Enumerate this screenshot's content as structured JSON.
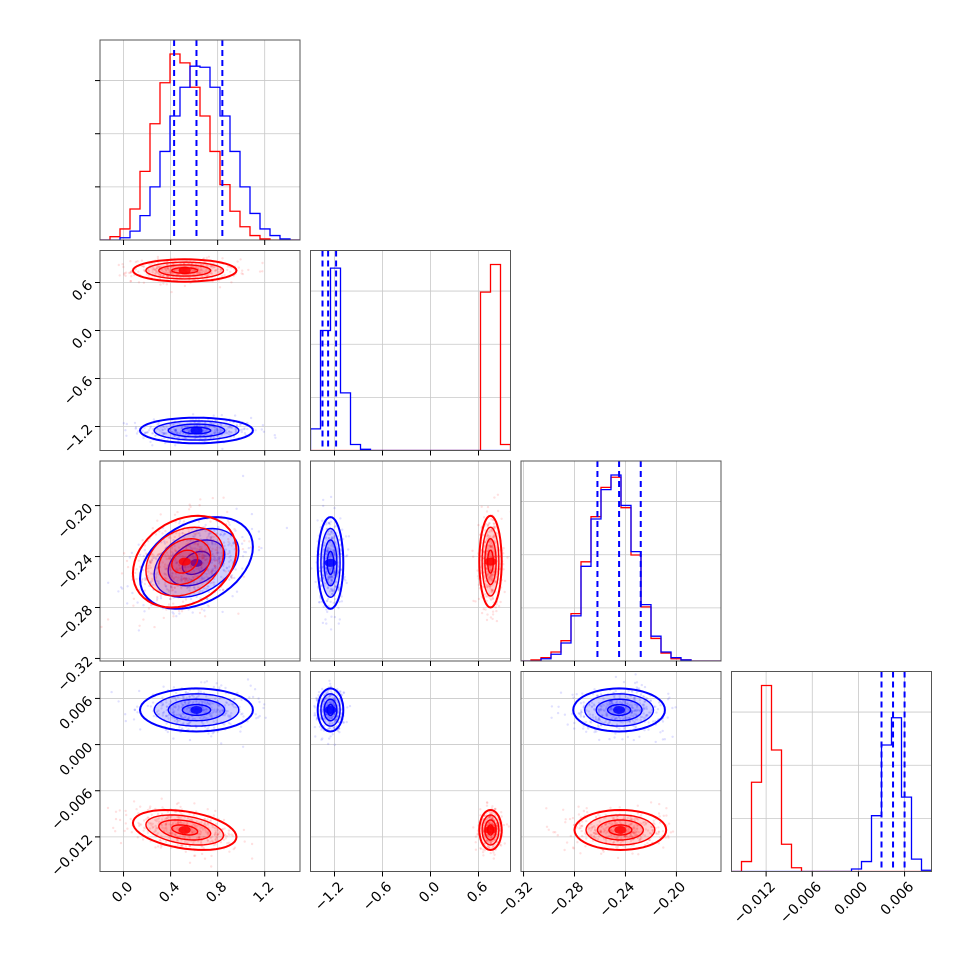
{
  "chart_data": {
    "type": "corner",
    "grid": true,
    "colors": {
      "series_a": "#0000ff",
      "series_b": "#ff0000"
    },
    "parameters": [
      {
        "range": [
          -0.2,
          1.5
        ],
        "ticks": [
          0.0,
          0.4,
          0.8,
          1.2
        ],
        "tick_labels": [
          "0.0",
          "0.4",
          "0.8",
          "1.2"
        ]
      },
      {
        "range": [
          -1.5,
          1.0
        ],
        "ticks": [
          -1.2,
          -0.6,
          0.0,
          0.6
        ],
        "tick_labels": [
          "−1.2",
          "−0.6",
          "0.0",
          "0.6"
        ]
      },
      {
        "range": [
          -0.322,
          -0.165
        ],
        "ticks": [
          -0.32,
          -0.28,
          -0.24,
          -0.2
        ],
        "tick_labels": [
          "−0.32",
          "−0.28",
          "−0.24",
          "−0.20"
        ]
      },
      {
        "range": [
          -0.0165,
          0.0095
        ],
        "ticks": [
          -0.012,
          -0.006,
          0.0,
          0.006
        ],
        "tick_labels": [
          "−0.012",
          "−0.006",
          "0.000",
          "0.006"
        ]
      }
    ],
    "series": [
      {
        "color": "#0000ff",
        "mean": [
          0.62,
          -1.25,
          -0.245,
          0.0045
        ],
        "sd": [
          0.24,
          0.08,
          0.018,
          0.0014
        ],
        "quantiles": [
          [
            0.43,
            0.62,
            0.84
          ],
          [
            -1.35,
            -1.28,
            -1.18
          ],
          [
            -0.262,
            -0.245,
            -0.228
          ],
          [
            0.003,
            0.0045,
            0.006
          ]
        ],
        "corr": {
          "0-2": 0.35,
          "1-2": 0.0,
          "0-3": 0.0,
          "1-3": 0.0,
          "2-3": 0.0
        }
      },
      {
        "color": "#ff0000",
        "mean": [
          0.52,
          0.75,
          -0.244,
          -0.0111
        ],
        "sd": [
          0.22,
          0.07,
          0.018,
          0.0013
        ],
        "corr": {
          "0-2": 0.25,
          "0-3": -0.35,
          "1-2": 0.0,
          "1-3": 0.0,
          "2-3": 0.0
        }
      }
    ],
    "histograms": {
      "0": {
        "edges": [
          -0.2,
          -0.115,
          -0.03,
          0.055,
          0.14,
          0.225,
          0.31,
          0.395,
          0.48,
          0.565,
          0.65,
          0.735,
          0.82,
          0.905,
          0.99,
          1.075,
          1.16,
          1.245,
          1.33,
          1.415,
          1.5
        ],
        "blue": [
          0,
          0,
          2,
          8,
          22,
          48,
          80,
          112,
          138,
          157,
          156,
          138,
          112,
          80,
          48,
          24,
          10,
          4,
          1,
          0
        ],
        "red": [
          0,
          3,
          10,
          28,
          62,
          105,
          142,
          168,
          160,
          138,
          112,
          80,
          50,
          26,
          12,
          4,
          1,
          0,
          0,
          0
        ]
      },
      "1": {
        "edges": [
          -1.5,
          -1.375,
          -1.25,
          -1.125,
          -1.0,
          -0.875,
          -0.75,
          -0.625,
          -0.5,
          -0.375,
          -0.25,
          -0.125,
          0.0,
          0.125,
          0.25,
          0.375,
          0.5,
          0.625,
          0.75,
          0.875,
          1.0
        ],
        "blue": [
          18,
          100,
          152,
          48,
          5,
          1,
          0,
          0,
          0,
          0,
          0,
          0,
          0,
          0,
          0,
          0,
          0,
          0,
          0,
          0
        ],
        "red": [
          0,
          0,
          0,
          0,
          0,
          0,
          0,
          0,
          0,
          0,
          0,
          0,
          0,
          0,
          0,
          0,
          0,
          132,
          155,
          5
        ]
      },
      "2": {
        "edges": [
          -0.322,
          -0.31415,
          -0.3063,
          -0.29845,
          -0.2906,
          -0.28275,
          -0.2749,
          -0.26705,
          -0.2592,
          -0.25135,
          -0.2435,
          -0.23565,
          -0.2278,
          -0.21995,
          -0.2121,
          -0.20425,
          -0.1964,
          -0.18855,
          -0.1807,
          -0.17285,
          -0.165
        ],
        "blue": [
          0,
          0,
          2,
          6,
          16,
          40,
          84,
          126,
          152,
          165,
          138,
          97,
          50,
          22,
          8,
          3,
          1,
          0,
          0,
          0
        ],
        "red": [
          0,
          1,
          3,
          8,
          18,
          42,
          88,
          128,
          154,
          163,
          136,
          94,
          48,
          20,
          7,
          2,
          1,
          0,
          0,
          0
        ]
      },
      "3": {
        "edges": [
          -0.0165,
          -0.0152,
          -0.0139,
          -0.0126,
          -0.0113,
          -0.01,
          -0.0087,
          -0.0074,
          -0.0061,
          -0.0048,
          -0.0035,
          -0.0022,
          -0.0009,
          0.0004,
          0.0017,
          0.003,
          0.0043,
          0.0056,
          0.0069,
          0.0082,
          0.0095
        ],
        "blue": [
          0,
          0,
          0,
          0,
          0,
          0,
          0,
          0,
          0,
          0,
          0,
          0,
          2,
          8,
          45,
          102,
          124,
          60,
          10,
          1
        ],
        "red": [
          0,
          8,
          72,
          150,
          98,
          22,
          3,
          0,
          0,
          0,
          0,
          0,
          0,
          0,
          0,
          0,
          0,
          0,
          0,
          0
        ]
      }
    },
    "contour_levels_sigma": [
      0.5,
      1.0,
      1.5,
      2.0
    ]
  }
}
